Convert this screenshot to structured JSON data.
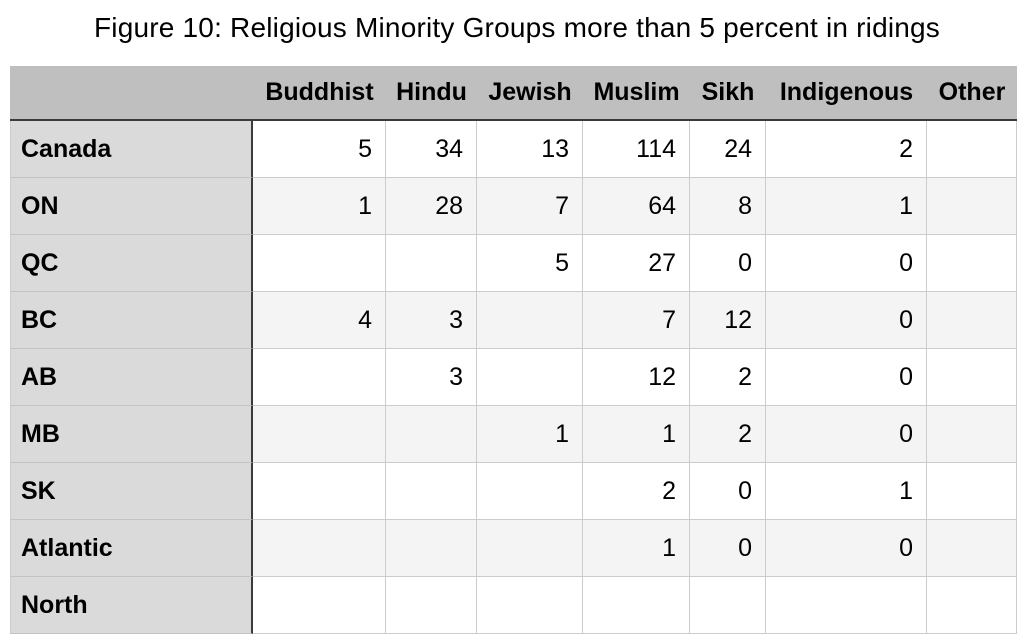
{
  "title": "Figure 10: Religious Minority Groups more than 5 percent in ridings",
  "table": {
    "columns": [
      "Buddhist",
      "Hindu",
      "Jewish",
      "Muslim",
      "Sikh",
      "Indigenous",
      "Other"
    ],
    "rows": [
      {
        "label": "Canada",
        "values": [
          "5",
          "34",
          "13",
          "114",
          "24",
          "2",
          ""
        ]
      },
      {
        "label": "ON",
        "values": [
          "1",
          "28",
          "7",
          "64",
          "8",
          "1",
          ""
        ]
      },
      {
        "label": "QC",
        "values": [
          "",
          "",
          "5",
          "27",
          "0",
          "0",
          ""
        ]
      },
      {
        "label": "BC",
        "values": [
          "4",
          "3",
          "",
          "7",
          "12",
          "0",
          ""
        ]
      },
      {
        "label": "AB",
        "values": [
          "",
          "3",
          "",
          "12",
          "2",
          "0",
          ""
        ]
      },
      {
        "label": "MB",
        "values": [
          "",
          "",
          "1",
          "1",
          "2",
          "0",
          ""
        ]
      },
      {
        "label": "SK",
        "values": [
          "",
          "",
          "",
          "2",
          "0",
          "1",
          ""
        ]
      },
      {
        "label": "Atlantic",
        "values": [
          "",
          "",
          "",
          "1",
          "0",
          "0",
          ""
        ]
      },
      {
        "label": "North",
        "values": [
          "",
          "",
          "",
          "",
          "",
          "",
          ""
        ]
      }
    ]
  },
  "colors": {
    "header_bg": "#bfbfbf",
    "row_header_bg": "#dadada",
    "alt_row_bg": "#f4f4f4",
    "grid_line": "#cccccc",
    "heavy_line": "#3a3a3a"
  },
  "chart_data": {
    "type": "table",
    "title": "Figure 10: Religious Minority Groups more than 5 percent in ridings",
    "columns": [
      "Buddhist",
      "Hindu",
      "Jewish",
      "Muslim",
      "Sikh",
      "Indigenous",
      "Other"
    ],
    "rows": [
      "Canada",
      "ON",
      "QC",
      "BC",
      "AB",
      "MB",
      "SK",
      "Atlantic",
      "North"
    ],
    "values": [
      [
        5,
        34,
        13,
        114,
        24,
        2,
        null
      ],
      [
        1,
        28,
        7,
        64,
        8,
        1,
        null
      ],
      [
        null,
        null,
        5,
        27,
        0,
        0,
        null
      ],
      [
        4,
        3,
        null,
        7,
        12,
        0,
        null
      ],
      [
        null,
        3,
        null,
        12,
        2,
        0,
        null
      ],
      [
        null,
        null,
        1,
        1,
        2,
        0,
        null
      ],
      [
        null,
        null,
        null,
        2,
        0,
        1,
        null
      ],
      [
        null,
        null,
        null,
        1,
        0,
        0,
        null
      ],
      [
        null,
        null,
        null,
        null,
        null,
        null,
        null
      ]
    ]
  }
}
